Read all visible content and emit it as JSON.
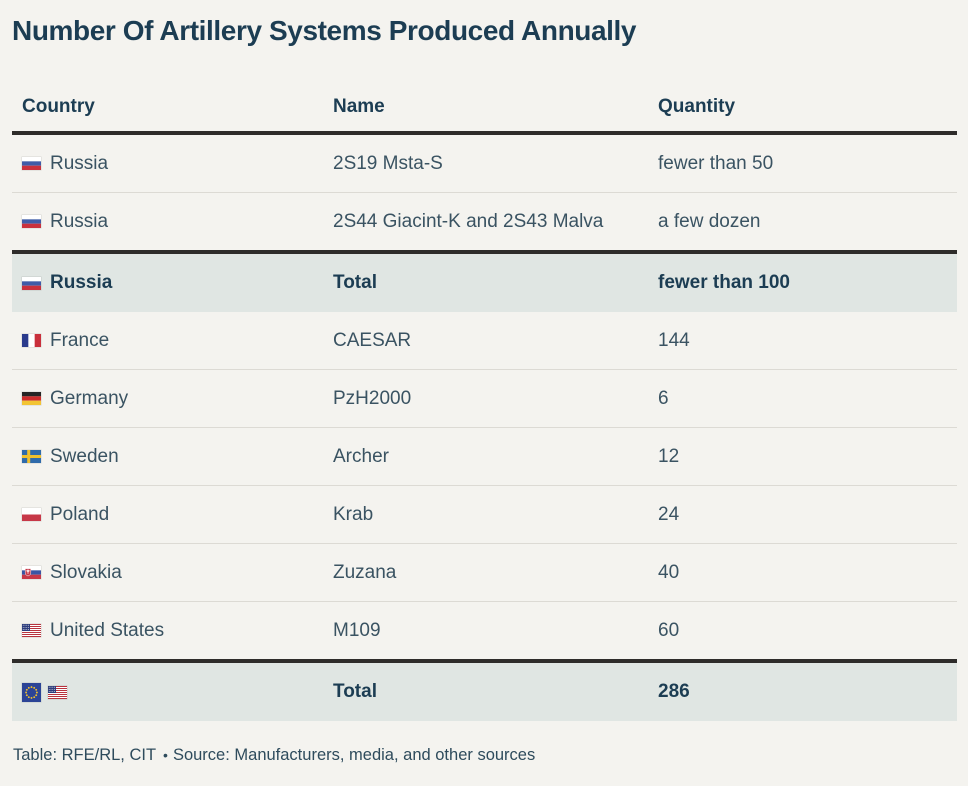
{
  "title": "Number Of Artillery Systems Produced Annually",
  "colors": {
    "background": "#f4f3ef",
    "heading_text": "#1c3d53",
    "body_text": "#3a5362",
    "total_row_background": "#e0e6e3",
    "thick_rule": "#2e2c2a",
    "thin_rule": "#dcdad4"
  },
  "table": {
    "columns": [
      "Country",
      "Name",
      "Quantity"
    ],
    "rows": [
      {
        "flags": [
          "russia"
        ],
        "country": "Russia",
        "name": "2S19 Msta-S",
        "quantity": "fewer than 50",
        "type": "normal"
      },
      {
        "flags": [
          "russia"
        ],
        "country": "Russia",
        "name": "2S44 Giacint-K and 2S43 Malva",
        "quantity": "a few dozen",
        "type": "normal"
      },
      {
        "flags": [
          "russia"
        ],
        "country": "Russia",
        "name": "Total",
        "quantity": "fewer than 100",
        "type": "total"
      },
      {
        "flags": [
          "france"
        ],
        "country": "France",
        "name": "CAESAR",
        "quantity": "144",
        "type": "normal"
      },
      {
        "flags": [
          "germany"
        ],
        "country": "Germany",
        "name": "PzH2000",
        "quantity": "6",
        "type": "normal"
      },
      {
        "flags": [
          "sweden"
        ],
        "country": "Sweden",
        "name": "Archer",
        "quantity": "12",
        "type": "normal"
      },
      {
        "flags": [
          "poland"
        ],
        "country": "Poland",
        "name": "Krab",
        "quantity": "24",
        "type": "normal"
      },
      {
        "flags": [
          "slovakia"
        ],
        "country": "Slovakia",
        "name": "Zuzana",
        "quantity": "40",
        "type": "normal"
      },
      {
        "flags": [
          "usa"
        ],
        "country": "United States",
        "name": "M109",
        "quantity": "60",
        "type": "normal"
      },
      {
        "flags": [
          "eu",
          "usa"
        ],
        "country": "",
        "name": "Total",
        "quantity": "286",
        "type": "total"
      }
    ]
  },
  "footer": {
    "credit": "Table: RFE/RL, CIT",
    "separator": "•",
    "source": "Source: Manufacturers, media, and other sources"
  },
  "chart_data": {
    "type": "table",
    "title": "Number Of Artillery Systems Produced Annually",
    "columns": [
      "Country",
      "Name",
      "Quantity"
    ],
    "rows": [
      [
        "Russia",
        "2S19 Msta-S",
        "fewer than 50"
      ],
      [
        "Russia",
        "2S44 Giacint-K and 2S43 Malva",
        "a few dozen"
      ],
      [
        "Russia",
        "Total",
        "fewer than 100"
      ],
      [
        "France",
        "CAESAR",
        "144"
      ],
      [
        "Germany",
        "PzH2000",
        "6"
      ],
      [
        "Sweden",
        "Archer",
        "12"
      ],
      [
        "Poland",
        "Krab",
        "24"
      ],
      [
        "Slovakia",
        "Zuzana",
        "40"
      ],
      [
        "United States",
        "M109",
        "60"
      ],
      [
        "EU + United States",
        "Total",
        "286"
      ]
    ],
    "highlighted_total_rows": [
      2,
      9
    ],
    "notes": "Rows marked as totals have shaded background and bold text; thick rules separate header, Russia subtotal, and grand total."
  }
}
